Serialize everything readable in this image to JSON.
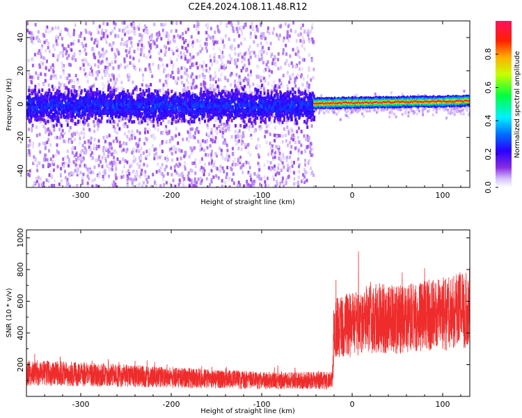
{
  "title": "C2E4.2024.108.11.48.R12",
  "chart_data": [
    {
      "type": "heatmap",
      "title": "C2E4.2024.108.11.48.R12",
      "xlabel": "Height of straight line (km)",
      "ylabel": "Frequency (Hz)",
      "xlim": [
        -360,
        130
      ],
      "ylim": [
        -50,
        50
      ],
      "xticks": [
        -300,
        -200,
        -100,
        0,
        100
      ],
      "yticks": [
        -40,
        -20,
        0,
        20,
        40
      ],
      "colorbar": {
        "label": "Normalized spectral amplitude",
        "range": [
          0.0,
          1.0
        ],
        "ticks": [
          "0.0",
          "0.2",
          "0.4",
          "0.6",
          "0.8"
        ],
        "colormap": [
          "#ffffff",
          "#e6d9ff",
          "#8a2be2",
          "#3a00ff",
          "#0060ff",
          "#00e0ff",
          "#00ff40",
          "#c8ff00",
          "#ffc000",
          "#ff2000",
          "#ff1060"
        ]
      },
      "regions": [
        {
          "x_range": [
            -360,
            -43
          ],
          "description_values": {
            "core_freq_halfwidth_hz": 10,
            "spread_freq_halfwidth_hz": 50,
            "typical_amplitude": 0.2
          }
        },
        {
          "x_range": [
            -43,
            130
          ],
          "description_values": {
            "core_freq_halfwidth_hz": 2,
            "spread_freq_halfwidth_hz": 4,
            "typical_amplitude": 0.9
          }
        }
      ]
    },
    {
      "type": "line",
      "xlabel": "Height of straight line (km)",
      "ylabel": "SNR (10 * v/v)",
      "xlim": [
        -360,
        130
      ],
      "ylim": [
        0,
        1050
      ],
      "xticks": [
        -300,
        -200,
        -100,
        0,
        100
      ],
      "yticks": [
        200,
        400,
        600,
        800,
        1000
      ],
      "color": "#ee2c2c",
      "series": [
        {
          "x": [
            -360,
            -300,
            -250,
            -200,
            -150,
            -100,
            -50,
            -22,
            -20,
            0,
            25,
            50,
            75,
            100,
            130
          ],
          "y": [
            150,
            140,
            130,
            120,
            110,
            100,
            100,
            100,
            440,
            450,
            500,
            480,
            500,
            520,
            560
          ]
        }
      ]
    }
  ]
}
